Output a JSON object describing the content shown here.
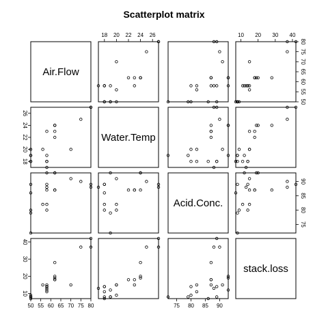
{
  "chart_data": {
    "type": "scatter",
    "title": "Scatterplot matrix",
    "variables": [
      "Air.Flow",
      "Water.Temp",
      "Acid.Conc.",
      "stack.loss"
    ],
    "axis_ranges": {
      "Air.Flow": [
        50,
        80
      ],
      "Water.Temp": [
        17,
        27
      ],
      "Acid.Conc.": [
        72,
        93
      ],
      "stack.loss": [
        7,
        42
      ]
    },
    "ticks": {
      "Air.Flow": [
        50,
        55,
        60,
        65,
        70,
        75,
        80
      ],
      "Water.Temp": [
        18,
        20,
        22,
        24,
        26
      ],
      "Acid.Conc.": [
        75,
        80,
        85,
        90
      ],
      "stack.loss": [
        10,
        20,
        30,
        40
      ]
    },
    "grid": false,
    "data": {
      "Air.Flow": [
        80,
        80,
        75,
        62,
        62,
        62,
        62,
        62,
        58,
        58,
        58,
        58,
        58,
        58,
        50,
        50,
        50,
        50,
        50,
        56,
        70
      ],
      "Water.Temp": [
        27,
        27,
        25,
        24,
        22,
        23,
        24,
        24,
        23,
        18,
        18,
        17,
        18,
        19,
        18,
        18,
        19,
        19,
        20,
        20,
        20
      ],
      "Acid.Conc.": [
        89,
        88,
        90,
        87,
        87,
        87,
        93,
        93,
        87,
        80,
        89,
        88,
        82,
        93,
        89,
        86,
        72,
        79,
        80,
        82,
        91
      ],
      "stack.loss": [
        42,
        37,
        37,
        28,
        18,
        18,
        19,
        20,
        15,
        14,
        14,
        13,
        11,
        12,
        8,
        7,
        8,
        8,
        9,
        15,
        15
      ]
    }
  }
}
